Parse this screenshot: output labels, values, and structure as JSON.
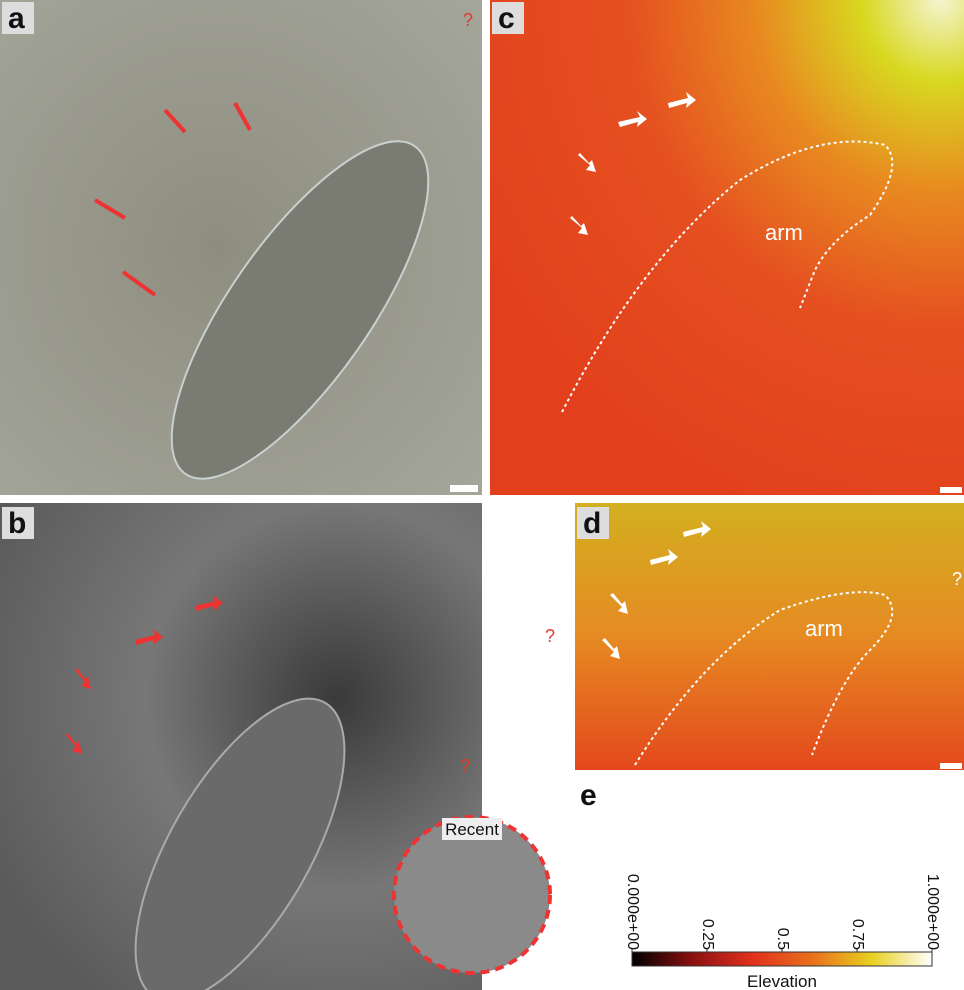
{
  "panels": [
    {
      "label": "a",
      "annotations": [
        "?"
      ]
    },
    {
      "label": "b",
      "annotations": [
        "?",
        "?"
      ],
      "inset_label": "Recent"
    },
    {
      "label": "c",
      "annotations": [
        "arm"
      ]
    },
    {
      "label": "d",
      "annotations": [
        "arm",
        "?"
      ]
    },
    {
      "label": "e"
    }
  ],
  "colorbar": {
    "label": "Elevation",
    "lim": [
      0,
      1
    ],
    "ticks": [
      {
        "value": 0,
        "label": "0.000e+00"
      },
      0.25,
      0.5,
      0.75,
      {
        "value": 1,
        "label": "1.000e+00"
      }
    ]
  }
}
